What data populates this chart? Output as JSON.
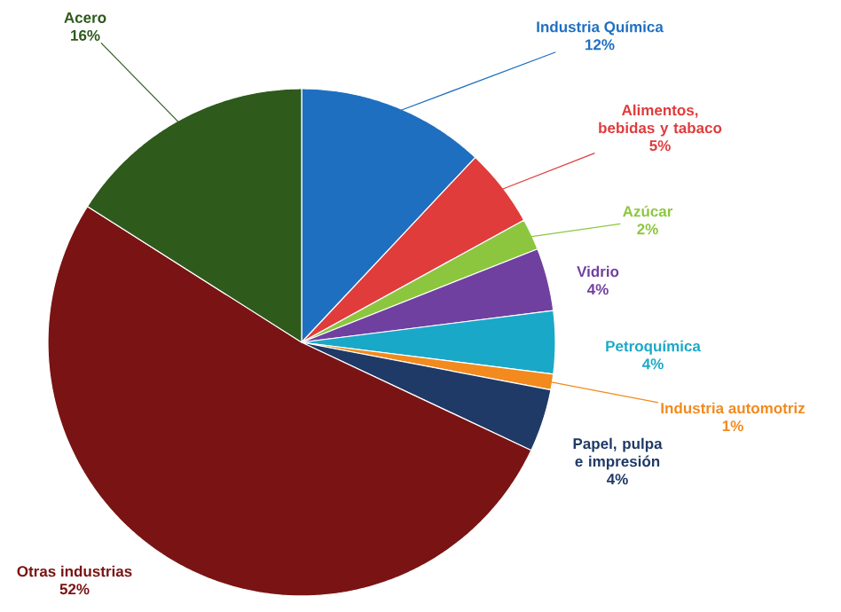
{
  "chart_data": {
    "type": "pie",
    "categories": [
      "Industria Química",
      "Alimentos, bebidas y tabaco",
      "Azúcar",
      "Vidrio",
      "Petroquímica",
      "Industria automotriz",
      "Papel, pulpa e impresión",
      "Otras industrias",
      "Acero"
    ],
    "values": [
      12,
      5,
      2,
      4,
      4,
      1,
      4,
      52,
      16
    ],
    "value_labels": [
      "12%",
      "5%",
      "2%",
      "4%",
      "4%",
      "1%",
      "4%",
      "52%",
      "16%"
    ],
    "colors": [
      "#1f6fc0",
      "#e03c3c",
      "#8cc63f",
      "#7040a0",
      "#1aa8c8",
      "#f28a1e",
      "#1f3a66",
      "#7a1414",
      "#2e5a1c"
    ]
  }
}
